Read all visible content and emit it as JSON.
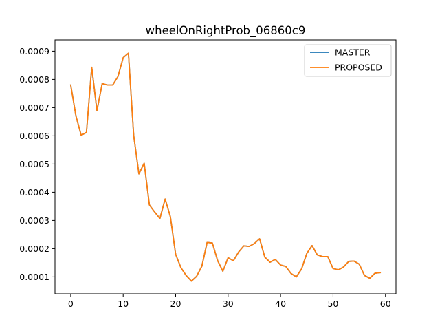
{
  "chart_data": {
    "type": "line",
    "title": "wheelOnRightProb_06860c9",
    "xlabel": "",
    "ylabel": "",
    "xlim": [
      -3.0,
      62.0
    ],
    "ylim": [
      4e-05,
      0.00094
    ],
    "x_ticks": [
      0,
      10,
      20,
      30,
      40,
      50,
      60
    ],
    "x_tick_labels": [
      "0",
      "10",
      "20",
      "30",
      "40",
      "50",
      "60"
    ],
    "y_ticks": [
      0.0001,
      0.0002,
      0.0003,
      0.0004,
      0.0005,
      0.0006,
      0.0007,
      0.0008,
      0.0009
    ],
    "y_tick_labels": [
      "0.0001",
      "0.0002",
      "0.0003",
      "0.0004",
      "0.0005",
      "0.0006",
      "0.0007",
      "0.0008",
      "0.0009"
    ],
    "grid": false,
    "legend_position": "top-right",
    "x": [
      0,
      1,
      2,
      3,
      4,
      5,
      6,
      7,
      8,
      9,
      10,
      11,
      12,
      13,
      14,
      15,
      16,
      17,
      18,
      19,
      20,
      21,
      22,
      23,
      24,
      25,
      26,
      27,
      28,
      29,
      30,
      31,
      32,
      33,
      34,
      35,
      36,
      37,
      38,
      39,
      40,
      41,
      42,
      43,
      44,
      45,
      46,
      47,
      48,
      49,
      50,
      51,
      52,
      53,
      54,
      55,
      56,
      57,
      58,
      59
    ],
    "series": [
      {
        "name": "MASTER",
        "color": "#1f77b4",
        "values": [
          0.00078,
          0.00067,
          0.000602,
          0.000612,
          0.000843,
          0.00069,
          0.000785,
          0.00078,
          0.00078,
          0.00081,
          0.000877,
          0.000893,
          0.000602,
          0.000465,
          0.000503,
          0.000355,
          0.00033,
          0.000307,
          0.000376,
          0.000313,
          0.00018,
          0.000133,
          0.000105,
          8.5e-05,
          0.000102,
          0.000138,
          0.000222,
          0.00022,
          0.000158,
          0.00012,
          0.000168,
          0.000157,
          0.000188,
          0.00021,
          0.000208,
          0.000218,
          0.000235,
          0.00017,
          0.000152,
          0.000162,
          0.000142,
          0.000137,
          0.000112,
          0.0001,
          0.000128,
          0.000183,
          0.000211,
          0.000178,
          0.000172,
          0.000172,
          0.00013,
          0.000125,
          0.000135,
          0.000155,
          0.000156,
          0.000145,
          0.000105,
          9.5e-05,
          0.000113,
          0.000115
        ]
      },
      {
        "name": "PROPOSED",
        "color": "#ff7f0e",
        "values": [
          0.00078,
          0.00067,
          0.000602,
          0.000612,
          0.000843,
          0.00069,
          0.000785,
          0.00078,
          0.00078,
          0.00081,
          0.000877,
          0.000893,
          0.000602,
          0.000465,
          0.000503,
          0.000355,
          0.00033,
          0.000307,
          0.000376,
          0.000313,
          0.00018,
          0.000133,
          0.000105,
          8.5e-05,
          0.000102,
          0.000138,
          0.000222,
          0.00022,
          0.000158,
          0.00012,
          0.000168,
          0.000157,
          0.000188,
          0.00021,
          0.000208,
          0.000218,
          0.000235,
          0.00017,
          0.000152,
          0.000162,
          0.000142,
          0.000137,
          0.000112,
          0.0001,
          0.000128,
          0.000183,
          0.000211,
          0.000178,
          0.000172,
          0.000172,
          0.00013,
          0.000125,
          0.000135,
          0.000155,
          0.000156,
          0.000145,
          0.000105,
          9.5e-05,
          0.000113,
          0.000115
        ]
      }
    ]
  }
}
